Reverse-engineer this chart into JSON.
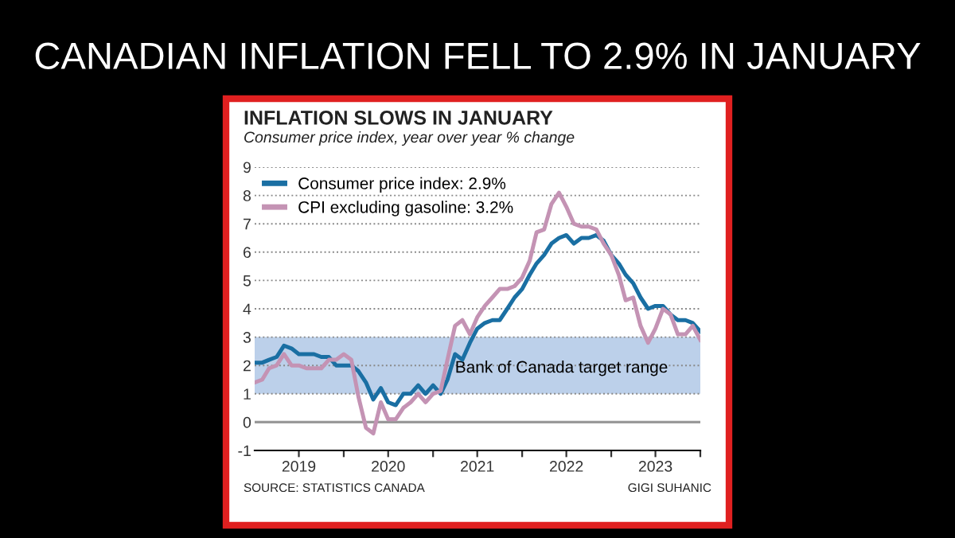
{
  "chart_data": {
    "type": "line",
    "title": "CANADIAN INFLATION FELL TO 2.9% IN JANUARY",
    "subtitle": "INFLATION SLOWS IN JANUARY",
    "annotations": [
      "Consumer price index, year over year % change",
      "SOURCE: STATISTICS CANADA",
      "GIGI SUHANIC"
    ],
    "x": [
      "2019-01",
      "2019-02",
      "2019-03",
      "2019-04",
      "2019-05",
      "2019-06",
      "2019-07",
      "2019-08",
      "2019-09",
      "2019-10",
      "2019-11",
      "2019-12",
      "2020-01",
      "2020-02",
      "2020-03",
      "2020-04",
      "2020-05",
      "2020-06",
      "2020-07",
      "2020-08",
      "2020-09",
      "2020-10",
      "2020-11",
      "2020-12",
      "2021-01",
      "2021-02",
      "2021-03",
      "2021-04",
      "2021-05",
      "2021-06",
      "2021-07",
      "2021-08",
      "2021-09",
      "2021-10",
      "2021-11",
      "2021-12",
      "2022-01",
      "2022-02",
      "2022-03",
      "2022-04",
      "2022-05",
      "2022-06",
      "2022-07",
      "2022-08",
      "2022-09",
      "2022-10",
      "2022-11",
      "2022-12",
      "2023-01",
      "2023-02",
      "2023-03",
      "2023-04",
      "2023-05",
      "2023-06",
      "2023-07",
      "2023-08",
      "2023-09",
      "2023-10",
      "2023-11",
      "2023-12",
      "2024-01"
    ],
    "series": [
      {
        "name": "Consumer price index: 2.9%",
        "color": "#1a6fa3",
        "values": [
          2.1,
          2.1,
          2.2,
          2.3,
          2.7,
          2.6,
          2.4,
          2.4,
          2.4,
          2.3,
          2.3,
          2.0,
          2.0,
          2.0,
          1.8,
          1.4,
          0.8,
          1.2,
          0.7,
          0.6,
          1.0,
          1.0,
          1.3,
          1.0,
          1.3,
          1.0,
          1.5,
          2.4,
          2.2,
          2.8,
          3.3,
          3.5,
          3.6,
          3.6,
          4.0,
          4.4,
          4.7,
          5.2,
          5.6,
          5.9,
          6.3,
          6.5,
          6.6,
          6.3,
          6.5,
          6.5,
          6.6,
          6.4,
          5.9,
          5.6,
          5.2,
          4.9,
          4.4,
          4.0,
          4.1,
          4.1,
          3.8,
          3.6,
          3.6,
          3.5,
          3.2
        ]
      },
      {
        "name": "CPI excluding gasoline: 3.2%",
        "color": "#c493b4",
        "values": [
          1.4,
          1.5,
          1.9,
          2.0,
          2.4,
          2.0,
          2.0,
          1.9,
          1.9,
          1.9,
          2.2,
          2.2,
          2.4,
          2.2,
          0.9,
          -0.2,
          -0.4,
          0.7,
          0.1,
          0.1,
          0.5,
          0.7,
          1.0,
          0.7,
          1.0,
          1.1,
          2.2,
          3.4,
          3.6,
          3.1,
          3.7,
          4.1,
          4.4,
          4.7,
          4.7,
          4.8,
          5.1,
          5.7,
          6.7,
          6.8,
          7.7,
          8.1,
          7.6,
          7.0,
          6.9,
          6.9,
          6.8,
          6.3,
          5.9,
          5.2,
          4.3,
          4.4,
          3.4,
          2.8,
          3.3,
          4.0,
          3.8,
          3.1,
          3.1,
          3.4,
          2.9
        ]
      }
    ],
    "xlim": [
      "2019-01",
      "2024-01"
    ],
    "xticks": [
      {
        "value": "2019-07",
        "label": "2019"
      },
      {
        "value": "2020-01",
        "label": null
      },
      {
        "value": "2020-07",
        "label": "2020"
      },
      {
        "value": "2021-01",
        "label": null
      },
      {
        "value": "2021-07",
        "label": "2021"
      },
      {
        "value": "2022-01",
        "label": null
      },
      {
        "value": "2022-07",
        "label": "2022"
      },
      {
        "value": "2023-01",
        "label": null
      },
      {
        "value": "2023-07",
        "label": "2023"
      },
      {
        "value": "2024-01",
        "label": null
      }
    ],
    "ylim": [
      -1,
      9
    ],
    "yticks": [
      -1,
      0,
      1,
      2,
      3,
      4,
      5,
      6,
      7,
      8,
      9
    ],
    "bands": [
      {
        "axis": "y",
        "from": 1,
        "to": 3,
        "label": "Bank of Canada target range",
        "color": "#bcd0ea"
      }
    ],
    "ref_lines": [
      {
        "axis": "y",
        "value": 0,
        "label": null,
        "color": "#999999"
      }
    ],
    "grid": "y",
    "legend": "top left",
    "line_style": "solid",
    "marker": "none"
  }
}
